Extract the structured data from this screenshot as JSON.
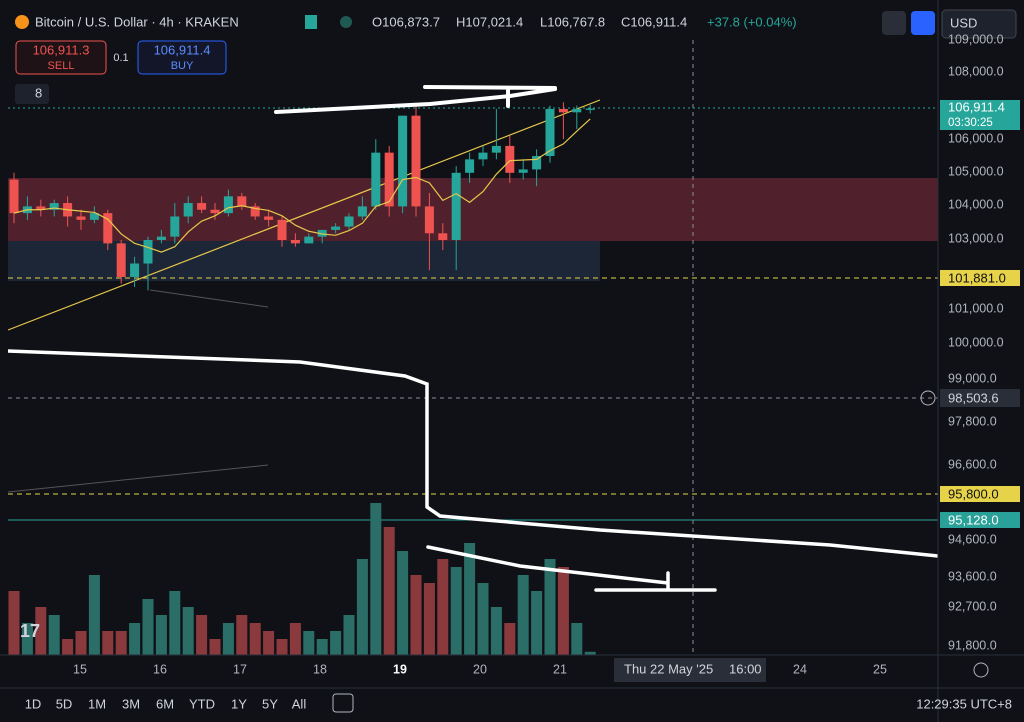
{
  "header": {
    "symbol": "Bitcoin / U.S. Dollar · 4h · KRAKEN",
    "open": "O106,873.7",
    "high": "H107,021.4",
    "low": "L106,767.8",
    "close": "C106,911.4",
    "change": "+37.8 (+0.04%)",
    "currency": "USD"
  },
  "trade": {
    "sell_price": "106,911.3",
    "sell": "SELL",
    "qty": "0.1",
    "buy_price": "106,911.4",
    "buy": "BUY",
    "indicators": "8"
  },
  "chart": {
    "candles": [
      [
        104800,
        105000,
        103500,
        103800
      ],
      [
        103800,
        104300,
        103600,
        104000
      ],
      [
        104000,
        104200,
        103700,
        103900
      ],
      [
        103900,
        104200,
        103700,
        104100
      ],
      [
        104100,
        104300,
        103400,
        103700
      ],
      [
        103700,
        103900,
        103300,
        103600
      ],
      [
        103600,
        104000,
        103500,
        103800
      ],
      [
        103800,
        103900,
        102700,
        102900
      ],
      [
        102900,
        103000,
        101700,
        101900
      ],
      [
        101900,
        102500,
        101600,
        102300
      ],
      [
        102300,
        103100,
        101500,
        103000
      ],
      [
        103000,
        103300,
        102900,
        103100
      ],
      [
        103100,
        104100,
        102900,
        103700
      ],
      [
        103700,
        104300,
        103500,
        104100
      ],
      [
        104100,
        104300,
        103800,
        103900
      ],
      [
        103900,
        104100,
        103600,
        103800
      ],
      [
        103800,
        104500,
        103700,
        104300
      ],
      [
        104300,
        104400,
        103900,
        104000
      ],
      [
        104000,
        104100,
        103600,
        103700
      ],
      [
        103700,
        103900,
        103400,
        103600
      ],
      [
        103600,
        103700,
        102800,
        103000
      ],
      [
        103000,
        103200,
        102800,
        102900
      ],
      [
        102900,
        103200,
        102900,
        103100
      ],
      [
        103100,
        103300,
        102900,
        103300
      ],
      [
        103300,
        103500,
        103200,
        103400
      ],
      [
        103400,
        103800,
        103300,
        103700
      ],
      [
        103700,
        104300,
        103600,
        104000
      ],
      [
        104000,
        106000,
        103900,
        105600
      ],
      [
        105600,
        105800,
        103700,
        104000
      ],
      [
        104000,
        106700,
        103800,
        106700
      ],
      [
        106700,
        107000,
        103700,
        104000
      ],
      [
        104000,
        104400,
        102100,
        103200
      ],
      [
        103200,
        103500,
        102700,
        103000
      ],
      [
        103000,
        105200,
        102100,
        105000
      ],
      [
        105000,
        105600,
        104700,
        105400
      ],
      [
        105400,
        105800,
        105200,
        105600
      ],
      [
        105600,
        106900,
        105400,
        105800
      ],
      [
        105800,
        106100,
        104700,
        105000
      ],
      [
        105000,
        105400,
        104800,
        105100
      ],
      [
        105100,
        105700,
        104600,
        105500
      ],
      [
        105500,
        107000,
        105300,
        106900
      ],
      [
        106900,
        107100,
        106000,
        106800
      ],
      [
        106800,
        107000,
        106300,
        106900
      ],
      [
        106873.7,
        107021.4,
        106767.8,
        106911.4
      ]
    ],
    "volumes": [
      40,
      20,
      30,
      25,
      10,
      15,
      50,
      15,
      15,
      20,
      35,
      25,
      40,
      30,
      25,
      10,
      20,
      25,
      20,
      15,
      10,
      20,
      15,
      10,
      15,
      25,
      60,
      95,
      80,
      65,
      50,
      45,
      60,
      55,
      70,
      45,
      30,
      20,
      50,
      40,
      60,
      55,
      20,
      2
    ]
  },
  "price_axis": {
    "labels": [
      "109,000.0",
      "108,000.0",
      "106,000.0",
      "105,000.0",
      "104,000.0",
      "103,000.0",
      "101,000.0",
      "100,000.0",
      "99,000.0",
      "97,800.0",
      "96,600.0",
      "94,600.0",
      "93,600.0",
      "92,700.0",
      "91,800.0"
    ]
  },
  "badges": {
    "last_price": "106,911.4",
    "countdown": "03:30:25",
    "level_1": "101,881.0",
    "crosshair": "98,503.6",
    "level_2": "95,800.0",
    "level_3": "95,128.0"
  },
  "time_axis": {
    "labels": [
      "15",
      "16",
      "17",
      "18",
      "19",
      "20",
      "21",
      "24",
      "25"
    ],
    "crosshair": "Thu 22 May '25",
    "crosshair_time": "16:00"
  },
  "toolbar": {
    "ranges": [
      "1D",
      "5D",
      "1M",
      "3M",
      "6M",
      "YTD",
      "1Y",
      "5Y",
      "All"
    ],
    "clock": "12:29:35 UTC+8"
  }
}
